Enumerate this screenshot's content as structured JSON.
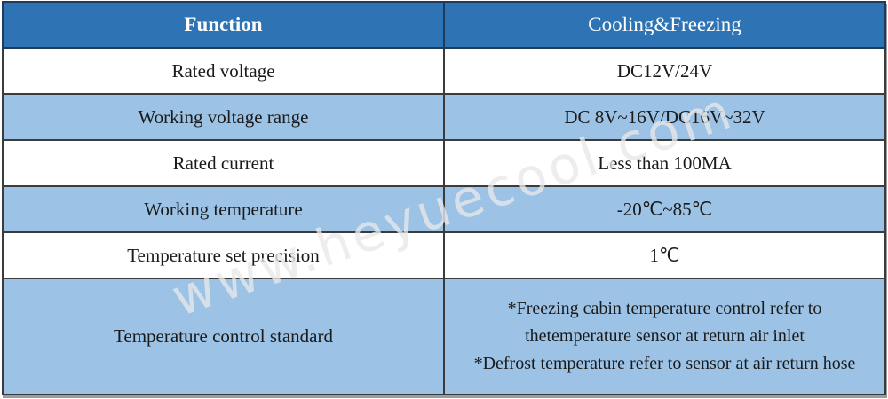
{
  "watermark": {
    "text": "www.heyuecool.com"
  },
  "colors": {
    "header_bg": "#2E74B5",
    "row_shade": "#9CC3E6",
    "header_text": "#FFFFFF",
    "body_text": "#1A1A1A",
    "grid_line": "#3B3B3B",
    "header_border": "#1F3A5C",
    "outer_border": "#1B1B1B",
    "table_shadow": "#9C9C9C"
  },
  "table": {
    "header": {
      "function_label": "Function",
      "value_label": "Cooling&Freezing"
    },
    "rows": [
      {
        "function": "Rated voltage",
        "value": "DC12V/24V",
        "shaded": false
      },
      {
        "function": "Working voltage range",
        "value": "DC 8V~16V/DC16V~32V",
        "shaded": true
      },
      {
        "function": "Rated current",
        "value": "Less than 100MA",
        "shaded": false
      },
      {
        "function": "Working temperature",
        "value": "-20℃~85℃",
        "shaded": true
      },
      {
        "function": "Temperature set precision",
        "value": "1℃",
        "shaded": false
      },
      {
        "function": "Temperature control standard",
        "value_lines": [
          "*Freezing cabin temperature control refer to",
          "thetemperature sensor at return air inlet",
          "*Defrost temperature refer to sensor at air return hose"
        ],
        "shaded": true
      }
    ]
  }
}
